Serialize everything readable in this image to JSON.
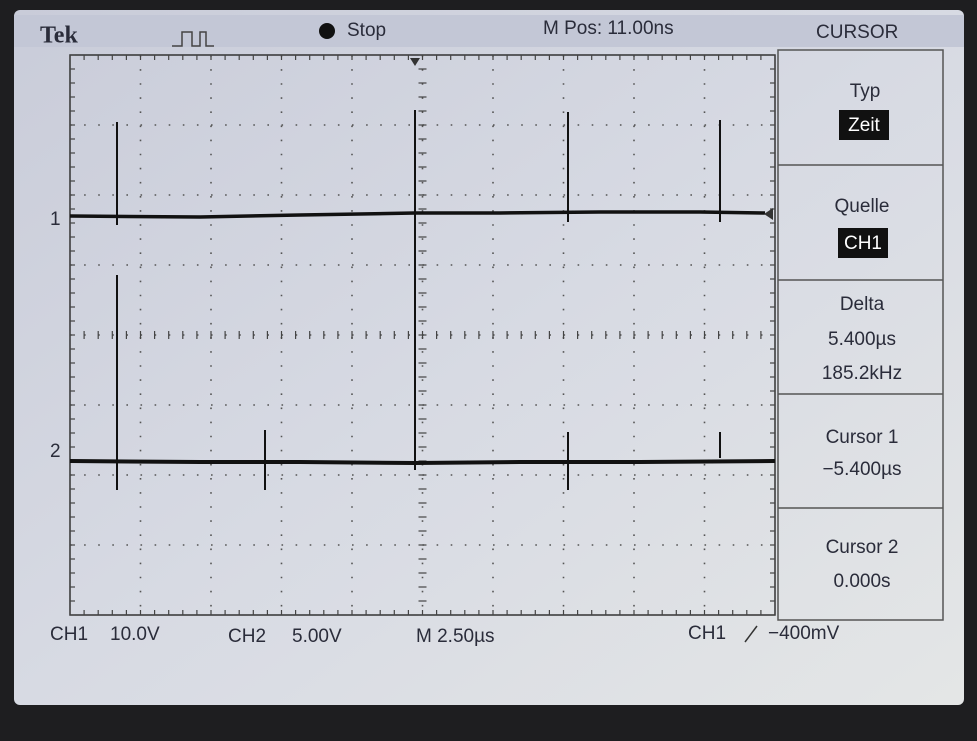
{
  "header": {
    "brand": "Tek",
    "status": "Stop",
    "position": "M Pos: 11.00ns",
    "mode": "CURSOR"
  },
  "menu": [
    {
      "label": "Typ",
      "value": "Zeit"
    },
    {
      "label": "Quelle",
      "value": "CH1"
    },
    {
      "label": "Delta",
      "lines": [
        "5.400µs",
        "185.2kHz"
      ]
    },
    {
      "label": "Cursor 1",
      "lines": [
        "−5.400µs"
      ]
    },
    {
      "label": "Cursor 2",
      "lines": [
        "0.000s"
      ]
    }
  ],
  "markers": [
    "1",
    "2"
  ],
  "footer": {
    "ch1": "CH1",
    "ch1_scale": "10.0V",
    "ch2": "CH2",
    "ch2_scale": "5.00V",
    "timebase": "M 2.50µs",
    "trigger_source": "CH1",
    "trigger_level": "−400mV"
  }
}
